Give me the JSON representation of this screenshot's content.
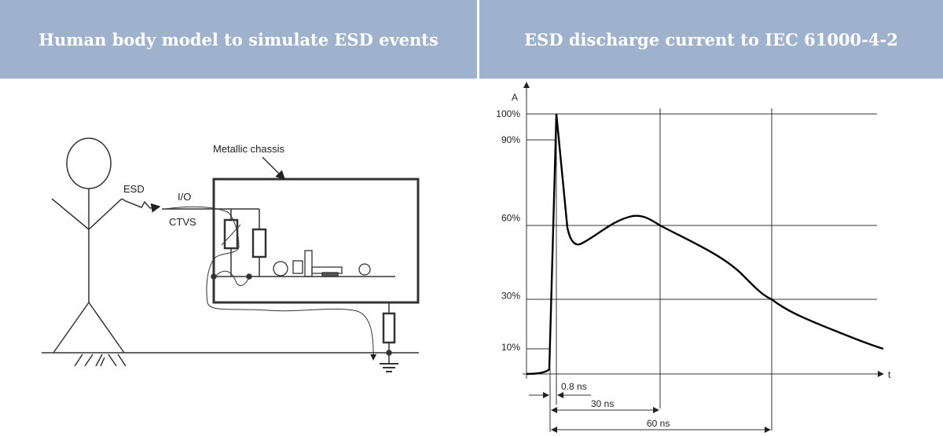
{
  "headers": {
    "left": "Human body model to simulate ESD events",
    "right": "ESD discharge current to IEC 61000-4-2"
  },
  "diagram": {
    "labels": {
      "esd": "ESD",
      "io": "I/O",
      "ctvs": "CTVS",
      "chassis": "Metallic chassis"
    }
  },
  "chart_data": {
    "type": "line",
    "ylabel": "A",
    "xlabel": "t",
    "y_ticks": [
      "100%",
      "90%",
      "60%",
      "30%",
      "10%"
    ],
    "y_tick_values": [
      100,
      90,
      60,
      30,
      10
    ],
    "grid": true,
    "annotations": [
      "0.8 ns",
      "30 ns",
      "60 ns"
    ],
    "key_points": [
      {
        "t_ns": 0.8,
        "current_pct": 100
      },
      {
        "t_ns": 30,
        "current_pct": 60
      },
      {
        "t_ns": 60,
        "current_pct": 30
      }
    ],
    "line_color": "#000000"
  },
  "colors": {
    "header_bg": "#9fb2cd",
    "header_text": "#ffffff"
  }
}
